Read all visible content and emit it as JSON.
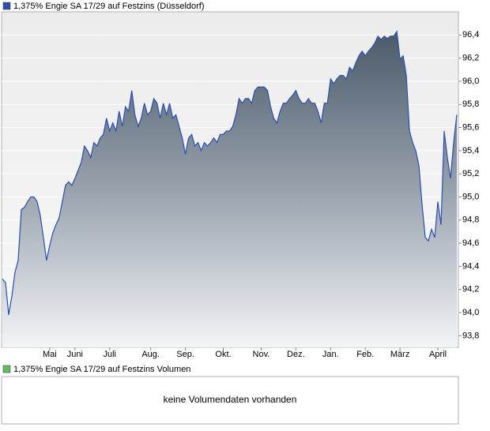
{
  "chart_data": {
    "type": "area",
    "series": [
      {
        "name": "1,375% Engie SA 17/29 auf Festzins (Düsseldorf)",
        "color": "#2a4fb0",
        "values": [
          94.29,
          94.26,
          93.98,
          94.14,
          94.35,
          94.45,
          94.89,
          94.91,
          94.96,
          95.0,
          95.0,
          94.96,
          94.84,
          94.65,
          94.45,
          94.58,
          94.69,
          94.76,
          94.82,
          94.96,
          95.1,
          95.13,
          95.1,
          95.16,
          95.23,
          95.3,
          95.44,
          95.4,
          95.34,
          95.47,
          95.44,
          95.51,
          95.54,
          95.68,
          95.57,
          95.64,
          95.57,
          95.74,
          95.61,
          95.78,
          95.74,
          95.92,
          95.71,
          95.61,
          95.68,
          95.81,
          95.71,
          95.74,
          95.85,
          95.81,
          95.68,
          95.81,
          95.71,
          95.81,
          95.68,
          95.71,
          95.61,
          95.51,
          95.37,
          95.51,
          95.54,
          95.44,
          95.47,
          95.4,
          95.47,
          95.44,
          95.47,
          95.51,
          95.47,
          95.54,
          95.54,
          95.57,
          95.57,
          95.61,
          95.71,
          95.85,
          95.81,
          95.85,
          95.85,
          95.81,
          95.92,
          95.95,
          95.95,
          95.95,
          95.92,
          95.78,
          95.68,
          95.64,
          95.74,
          95.81,
          95.81,
          95.85,
          95.88,
          95.92,
          95.85,
          95.81,
          95.81,
          95.85,
          95.81,
          95.81,
          95.74,
          95.64,
          95.81,
          95.81,
          96.02,
          95.98,
          96.02,
          96.05,
          96.05,
          96.02,
          96.12,
          96.09,
          96.16,
          96.22,
          96.26,
          96.22,
          96.26,
          96.29,
          96.33,
          96.39,
          96.36,
          96.39,
          96.37,
          96.39,
          96.39,
          96.43,
          96.19,
          96.22,
          96.05,
          95.57,
          95.47,
          95.4,
          95.27,
          94.93,
          94.65,
          94.62,
          94.72,
          94.65,
          94.96,
          94.76,
          95.57,
          95.34,
          95.16,
          95.47,
          95.71
        ]
      }
    ],
    "categories": [
      null,
      null,
      null,
      null,
      null,
      null,
      null,
      null,
      null,
      null,
      null,
      null,
      null,
      null,
      null,
      "Mai",
      null,
      null,
      null,
      null,
      null,
      null,
      null,
      "Juni",
      null,
      null,
      null,
      null,
      null,
      null,
      null,
      null,
      null,
      null,
      "Juli",
      null,
      null,
      null,
      null,
      null,
      null,
      null,
      null,
      null,
      null,
      null,
      null,
      "Aug.",
      null,
      null,
      null,
      null,
      null,
      null,
      null,
      null,
      null,
      null,
      "Sep.",
      null,
      null,
      null,
      null,
      null,
      null,
      null,
      null,
      null,
      null,
      null,
      "Okt.",
      null,
      null,
      null,
      null,
      null,
      null,
      null,
      null,
      null,
      null,
      null,
      "Nov.",
      null,
      null,
      null,
      null,
      null,
      null,
      null,
      null,
      null,
      null,
      "Dez.",
      null,
      null,
      null,
      null,
      null,
      null,
      null,
      null,
      null,
      null,
      "Jan.",
      null,
      null,
      null,
      null,
      null,
      null,
      null,
      null,
      null,
      null,
      "Feb.",
      null,
      null,
      null,
      null,
      null,
      null,
      null,
      null,
      null,
      null,
      "März",
      null,
      null,
      null,
      null,
      null,
      null,
      null,
      null,
      null,
      null,
      null,
      "April",
      null,
      null,
      null,
      null,
      null,
      null
    ],
    "ylim": [
      93.7,
      96.6
    ],
    "yticks": [
      {
        "value": 93.8,
        "label": "93,8"
      },
      {
        "value": 94.0,
        "label": "94,0"
      },
      {
        "value": 94.2,
        "label": "94,2"
      },
      {
        "value": 94.4,
        "label": "94,4"
      },
      {
        "value": 94.6,
        "label": "94,6"
      },
      {
        "value": 94.8,
        "label": "94,8"
      },
      {
        "value": 95.0,
        "label": "95,0"
      },
      {
        "value": 95.2,
        "label": "95,2"
      },
      {
        "value": 95.4,
        "label": "95,4"
      },
      {
        "value": 95.6,
        "label": "95,6"
      },
      {
        "value": 95.8,
        "label": "95,8"
      },
      {
        "value": 96.0,
        "label": "96,0"
      },
      {
        "value": 96.2,
        "label": "96,2"
      },
      {
        "value": 96.4,
        "label": "96,4"
      }
    ],
    "grid": true
  },
  "volume_panel": {
    "name": "1,375% Engie SA 17/29 auf Festzins Volumen",
    "color": "#66bb66",
    "message": "keine Volumendaten vorhanden"
  }
}
